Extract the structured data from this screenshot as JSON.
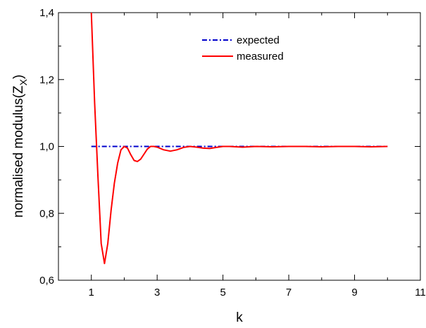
{
  "chart_data": {
    "type": "line",
    "xlabel": "k",
    "ylabel": "normalised modulus(Z",
    "ylabel_sub": "X",
    "ylabel_close": ")",
    "xlim": [
      0,
      11
    ],
    "ylim": [
      0.6,
      1.4
    ],
    "x_ticks": [
      1,
      3,
      5,
      7,
      9,
      11
    ],
    "x_minor_ticks": [
      2,
      4,
      6,
      8,
      10
    ],
    "x_tick_labels": [
      "1",
      "3",
      "5",
      "7",
      "9",
      "11"
    ],
    "y_ticks": [
      0.6,
      0.8,
      1.0,
      1.2,
      1.4
    ],
    "y_minor_ticks": [
      0.7,
      0.9,
      1.1,
      1.3
    ],
    "y_tick_labels": [
      "0,6",
      "0,8",
      "1,0",
      "1,2",
      "1,4"
    ],
    "legend_position": "top-right",
    "series": [
      {
        "name": "expected",
        "color": "#0000cc",
        "style": "dash-dot",
        "x": [
          1,
          10
        ],
        "y": [
          1.0,
          1.0
        ]
      },
      {
        "name": "measured",
        "color": "#ff0000",
        "style": "solid",
        "x": [
          1.0,
          1.1,
          1.2,
          1.3,
          1.4,
          1.5,
          1.6,
          1.7,
          1.8,
          1.9,
          2.0,
          2.1,
          2.2,
          2.3,
          2.4,
          2.5,
          2.6,
          2.7,
          2.8,
          2.9,
          3.0,
          3.2,
          3.4,
          3.6,
          3.8,
          4.0,
          4.2,
          4.4,
          4.6,
          4.8,
          5.0,
          5.2,
          5.4,
          5.6,
          6.0,
          6.5,
          7.0,
          7.5,
          8.0,
          8.5,
          9.0,
          9.5,
          10.0
        ],
        "y": [
          1.4,
          1.13,
          0.91,
          0.71,
          0.65,
          0.71,
          0.81,
          0.89,
          0.95,
          0.99,
          1.0,
          0.995,
          0.975,
          0.958,
          0.955,
          0.962,
          0.977,
          0.992,
          1.0,
          1.0,
          0.998,
          0.99,
          0.986,
          0.99,
          0.997,
          1.0,
          0.998,
          0.995,
          0.994,
          0.997,
          1.0,
          1.0,
          0.999,
          0.998,
          1.0,
          0.999,
          1.0,
          1.0,
          0.999,
          1.0,
          1.0,
          0.999,
          1.0
        ]
      }
    ]
  }
}
